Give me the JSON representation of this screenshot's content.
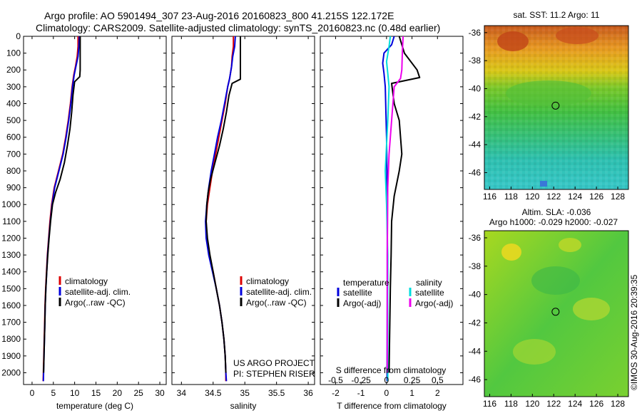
{
  "header": {
    "line1": "Argo profile: AO 5901494_307 23-Aug-2016 20160823_800 41.215S 122.172E",
    "line2": "Climatology: CARS2009. Satellite-adjusted climatology: synTS_20160823.nc (0.48d earlier)"
  },
  "depth_axis": {
    "ticks": [
      0,
      100,
      200,
      300,
      400,
      500,
      600,
      700,
      800,
      900,
      1000,
      1100,
      1200,
      1300,
      1400,
      1500,
      1600,
      1700,
      1800,
      1900,
      2000
    ],
    "range": [
      0,
      2070
    ]
  },
  "colors": {
    "climatology": "#dd0000",
    "satellite": "#0000dd",
    "argo": "#000000",
    "sat_salinity": "#00dddd",
    "argo_salinity_adj": "#ee00ee"
  },
  "chart_data": [
    {
      "type": "line",
      "xlabel": "temperature (deg C)",
      "xticks": [
        0,
        5,
        10,
        15,
        20,
        25,
        30
      ],
      "xlim": [
        -2,
        31.5
      ],
      "legend": [
        "climatology",
        "satellite-adj. clim.",
        "Argo(..raw -QC)"
      ],
      "series": [
        {
          "name": "climatology",
          "color": "#dd0000",
          "points": [
            [
              10.8,
              0
            ],
            [
              10.8,
              60
            ],
            [
              10.6,
              120
            ],
            [
              10.2,
              180
            ],
            [
              9.8,
              230
            ],
            [
              9.4,
              300
            ],
            [
              9.0,
              400
            ],
            [
              8.5,
              500
            ],
            [
              7.9,
              600
            ],
            [
              7.2,
              700
            ],
            [
              6.2,
              800
            ],
            [
              5.2,
              900
            ],
            [
              4.6,
              1000
            ],
            [
              4.2,
              1100
            ],
            [
              3.9,
              1200
            ],
            [
              3.6,
              1300
            ],
            [
              3.4,
              1400
            ],
            [
              3.2,
              1500
            ],
            [
              3.05,
              1600
            ],
            [
              2.95,
              1700
            ],
            [
              2.85,
              1800
            ],
            [
              2.75,
              1900
            ],
            [
              2.65,
              2000
            ],
            [
              2.6,
              2050
            ]
          ]
        },
        {
          "name": "satellite-adj. clim.",
          "color": "#0000dd",
          "points": [
            [
              11.1,
              0
            ],
            [
              11.0,
              60
            ],
            [
              10.8,
              120
            ],
            [
              10.3,
              180
            ],
            [
              9.9,
              230
            ],
            [
              9.5,
              300
            ],
            [
              9.1,
              400
            ],
            [
              8.6,
              500
            ],
            [
              8.0,
              600
            ],
            [
              7.3,
              700
            ],
            [
              6.3,
              800
            ],
            [
              5.3,
              900
            ],
            [
              4.7,
              1000
            ],
            [
              4.3,
              1100
            ],
            [
              3.95,
              1200
            ],
            [
              3.65,
              1300
            ],
            [
              3.45,
              1400
            ],
            [
              3.25,
              1500
            ],
            [
              3.1,
              1600
            ],
            [
              3.0,
              1700
            ],
            [
              2.9,
              1800
            ],
            [
              2.8,
              1900
            ],
            [
              2.7,
              2000
            ],
            [
              2.65,
              2050
            ]
          ]
        },
        {
          "name": "Argo(..raw -QC)",
          "color": "#000000",
          "points": [
            [
              11.3,
              0
            ],
            [
              11.3,
              100
            ],
            [
              11.3,
              200
            ],
            [
              11.2,
              240
            ],
            [
              10.0,
              270
            ],
            [
              9.6,
              350
            ],
            [
              9.3,
              450
            ],
            [
              8.9,
              550
            ],
            [
              8.3,
              650
            ],
            [
              7.6,
              750
            ],
            [
              6.6,
              850
            ],
            [
              5.5,
              930
            ],
            [
              4.8,
              1000
            ],
            [
              4.35,
              1100
            ],
            [
              4.0,
              1200
            ],
            [
              3.7,
              1300
            ],
            [
              3.45,
              1400
            ],
            [
              3.25,
              1500
            ],
            [
              3.1,
              1600
            ],
            [
              3.0,
              1700
            ],
            [
              2.9,
              1800
            ],
            [
              2.8,
              1900
            ],
            [
              2.7,
              2000
            ]
          ]
        }
      ]
    },
    {
      "type": "line",
      "xlabel": "salinity",
      "xticks": [
        34,
        34.5,
        35,
        35.5,
        36
      ],
      "xtick_labels": [
        "34",
        "34.5",
        "35",
        "35.5",
        "36"
      ],
      "xlim": [
        33.85,
        36.1
      ],
      "legend": [
        "climatology",
        "satellite-adj. clim.",
        "Argo(..raw -QC)"
      ],
      "series": [
        {
          "name": "climatology",
          "color": "#dd0000",
          "points": [
            [
              34.82,
              0
            ],
            [
              34.82,
              60
            ],
            [
              34.8,
              120
            ],
            [
              34.79,
              180
            ],
            [
              34.76,
              250
            ],
            [
              34.73,
              300
            ],
            [
              34.69,
              400
            ],
            [
              34.64,
              500
            ],
            [
              34.59,
              600
            ],
            [
              34.54,
              700
            ],
            [
              34.49,
              800
            ],
            [
              34.45,
              900
            ],
            [
              34.41,
              1000
            ],
            [
              34.39,
              1100
            ],
            [
              34.4,
              1200
            ],
            [
              34.44,
              1300
            ],
            [
              34.5,
              1400
            ],
            [
              34.55,
              1500
            ],
            [
              34.6,
              1600
            ],
            [
              34.64,
              1700
            ],
            [
              34.67,
              1800
            ],
            [
              34.69,
              1900
            ],
            [
              34.7,
              2000
            ],
            [
              34.7,
              2050
            ]
          ]
        },
        {
          "name": "satellite-adj. clim.",
          "color": "#0000dd",
          "points": [
            [
              34.85,
              0
            ],
            [
              34.84,
              60
            ],
            [
              34.81,
              120
            ],
            [
              34.79,
              180
            ],
            [
              34.76,
              250
            ],
            [
              34.73,
              300
            ],
            [
              34.68,
              400
            ],
            [
              34.63,
              500
            ],
            [
              34.57,
              600
            ],
            [
              34.52,
              700
            ],
            [
              34.47,
              800
            ],
            [
              34.43,
              900
            ],
            [
              34.4,
              1000
            ],
            [
              34.38,
              1100
            ],
            [
              34.39,
              1200
            ],
            [
              34.43,
              1300
            ],
            [
              34.49,
              1400
            ],
            [
              34.55,
              1500
            ],
            [
              34.6,
              1600
            ],
            [
              34.64,
              1700
            ],
            [
              34.67,
              1800
            ],
            [
              34.69,
              1900
            ],
            [
              34.7,
              2000
            ],
            [
              34.71,
              2050
            ]
          ]
        },
        {
          "name": "Argo(..raw -QC)",
          "color": "#000000",
          "points": [
            [
              34.93,
              0
            ],
            [
              34.93,
              80
            ],
            [
              34.93,
              180
            ],
            [
              34.93,
              220
            ],
            [
              34.93,
              255
            ],
            [
              34.8,
              280
            ],
            [
              34.75,
              350
            ],
            [
              34.71,
              450
            ],
            [
              34.66,
              550
            ],
            [
              34.6,
              650
            ],
            [
              34.53,
              750
            ],
            [
              34.46,
              850
            ],
            [
              34.42,
              930
            ],
            [
              34.4,
              1000
            ],
            [
              34.39,
              1100
            ],
            [
              34.41,
              1200
            ],
            [
              34.45,
              1300
            ],
            [
              34.5,
              1400
            ],
            [
              34.55,
              1500
            ],
            [
              34.6,
              1600
            ],
            [
              34.64,
              1700
            ],
            [
              34.67,
              1800
            ],
            [
              34.69,
              1900
            ],
            [
              34.7,
              2000
            ]
          ]
        }
      ],
      "annotation": [
        "US ARGO PROJECT",
        "PI: STEPHEN RISER"
      ]
    },
    {
      "type": "line",
      "xlabel": "T difference from climatology",
      "xticks": [
        -2,
        -1,
        0,
        1,
        2
      ],
      "xtick_labels": [
        "-2",
        "-1",
        "0",
        "1",
        "2"
      ],
      "xlim": [
        -2.6,
        3.0
      ],
      "top_xlabel": "S difference from climatology",
      "top_ticks": [
        -0.5,
        -0.25,
        0,
        0.25,
        0.5
      ],
      "top_tick_labels": [
        "-0.5",
        "-0.25",
        "0",
        "0.25",
        "0.5"
      ],
      "legend_headers": [
        "temperature",
        "salinity"
      ],
      "legend": [
        "satellite",
        "Argo(-adj)",
        "satellite",
        "Argo(-adj)"
      ],
      "series": [
        {
          "name": "satellite",
          "group": "temperature",
          "color": "#0000dd",
          "points": [
            [
              0.3,
              0
            ],
            [
              0.2,
              50
            ],
            [
              -0.1,
              100
            ],
            [
              -0.15,
              160
            ],
            [
              -0.1,
              220
            ],
            [
              -0.05,
              300
            ],
            [
              0,
              600
            ],
            [
              0.03,
              1000
            ],
            [
              0.03,
              1500
            ],
            [
              0.02,
              2050
            ]
          ]
        },
        {
          "name": "satellite",
          "group": "salinity",
          "color": "#00dddd",
          "points": [
            [
              0.15,
              0
            ],
            [
              0.1,
              60
            ],
            [
              0.0,
              150
            ],
            [
              0.05,
              220
            ],
            [
              0.1,
              300
            ],
            [
              0.05,
              500
            ],
            [
              -0.05,
              800
            ],
            [
              0,
              1000
            ],
            [
              0.05,
              1300
            ],
            [
              0.05,
              1600
            ],
            [
              0.05,
              2050
            ]
          ]
        },
        {
          "name": "Argo(-adj)",
          "group": "temperature",
          "color": "#000000",
          "points": [
            [
              0.5,
              0
            ],
            [
              0.7,
              100
            ],
            [
              1.2,
              200
            ],
            [
              1.3,
              245
            ],
            [
              0.2,
              280
            ],
            [
              0.3,
              400
            ],
            [
              0.5,
              500
            ],
            [
              0.6,
              700
            ],
            [
              0.5,
              800
            ],
            [
              0.3,
              950
            ],
            [
              0.2,
              1100
            ],
            [
              0.18,
              1300
            ],
            [
              0.15,
              1500
            ],
            [
              0.1,
              2000
            ]
          ]
        },
        {
          "name": "Argo(-adj)",
          "group": "salinity",
          "color": "#ee00ee",
          "points": [
            [
              0.65,
              0
            ],
            [
              0.62,
              100
            ],
            [
              0.6,
              200
            ],
            [
              0.55,
              250
            ],
            [
              0.3,
              300
            ],
            [
              0.2,
              500
            ],
            [
              0.1,
              700
            ],
            [
              0.05,
              900
            ],
            [
              0.04,
              1100
            ],
            [
              0.03,
              1300
            ],
            [
              0.03,
              2000
            ]
          ]
        }
      ]
    },
    {
      "type": "heatmap",
      "title": "sat. SST: 11.2 Argo: 11",
      "xticks": [
        116,
        118,
        120,
        122,
        124,
        126,
        128
      ],
      "yticks": [
        -36,
        -38,
        -40,
        -42,
        -44,
        -46
      ],
      "xlim": [
        115.5,
        129
      ],
      "ylim": [
        -47.2,
        -35.5
      ],
      "marker": {
        "lon": 122.172,
        "lat": -41.215
      }
    },
    {
      "type": "heatmap",
      "title": "Altim. SLA: -0.036",
      "subtitle": "Argo h1000: -0.029 h2000: -0.027",
      "xticks": [
        116,
        118,
        120,
        122,
        124,
        126,
        128
      ],
      "yticks": [
        -36,
        -38,
        -40,
        -42,
        -44,
        -46
      ],
      "xlim": [
        115.5,
        129
      ],
      "ylim": [
        -47.2,
        -35.5
      ],
      "marker": {
        "lon": 122.172,
        "lat": -41.215
      },
      "side_label": "©IMOS 30-Aug-2016 20:39:35"
    }
  ]
}
